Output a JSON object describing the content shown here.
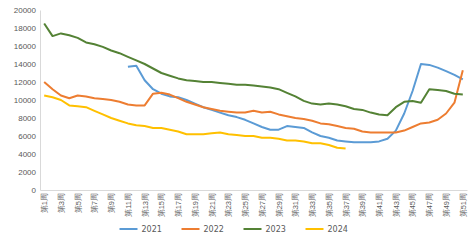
{
  "chart_data": {
    "type": "line",
    "categories": [
      "第1周",
      null,
      "第3周",
      null,
      "第5周",
      null,
      "第7周",
      null,
      "第9周",
      null,
      "第11周",
      null,
      "第13周",
      null,
      "第15周",
      null,
      "第17周",
      null,
      "第19周",
      null,
      "第21周",
      null,
      "第23周",
      null,
      "第25周",
      null,
      "第27周",
      null,
      "第29周",
      null,
      "第31周",
      null,
      "第33周",
      null,
      "第35周",
      null,
      "第37周",
      null,
      "第39周",
      null,
      "第41周",
      null,
      "第43周",
      null,
      "第45周",
      null,
      "第47周",
      null,
      "第49周",
      null,
      "第51周"
    ],
    "series": [
      {
        "name": "2021",
        "color": "#5b9bd5",
        "values": [
          null,
          null,
          null,
          null,
          null,
          null,
          null,
          null,
          null,
          null,
          13700,
          13800,
          12200,
          11200,
          10700,
          10400,
          10300,
          10000,
          9600,
          9200,
          8900,
          8600,
          8300,
          8100,
          7800,
          7400,
          7000,
          6700,
          6700,
          7100,
          7000,
          6900,
          6400,
          6000,
          5800,
          5500,
          5400,
          5300,
          5300,
          5300,
          5400,
          5700,
          6600,
          8500,
          11000,
          14000,
          13900,
          13600,
          13200,
          12800,
          12300
        ]
      },
      {
        "name": "2022",
        "color": "#ed7d31",
        "values": [
          12000,
          11200,
          10500,
          10200,
          10500,
          10400,
          10200,
          10100,
          10000,
          9800,
          9500,
          9400,
          9400,
          10700,
          10800,
          10600,
          10200,
          9800,
          9500,
          9200,
          9000,
          8800,
          8700,
          8600,
          8600,
          8800,
          8600,
          8700,
          8400,
          8200,
          8000,
          7900,
          7700,
          7400,
          7300,
          7100,
          6900,
          6800,
          6500,
          6400,
          6400,
          6400,
          6400,
          6600,
          7000,
          7400,
          7500,
          7800,
          8500,
          9700,
          13300
        ]
      },
      {
        "name": "2023",
        "color": "#548235",
        "values": [
          18500,
          17100,
          17400,
          17200,
          16900,
          16400,
          16200,
          15900,
          15500,
          15200,
          14800,
          14400,
          14000,
          13500,
          13000,
          12700,
          12400,
          12200,
          12100,
          12000,
          12000,
          11900,
          11800,
          11700,
          11700,
          11600,
          11500,
          11400,
          11200,
          10800,
          10400,
          9900,
          9600,
          9500,
          9600,
          9500,
          9300,
          9000,
          8900,
          8600,
          8400,
          8300,
          9200,
          9800,
          9900,
          9700,
          11200,
          11100,
          11000,
          10700,
          10600
        ]
      },
      {
        "name": "2024",
        "color": "#ffc000",
        "values": [
          10500,
          10300,
          10000,
          9400,
          9300,
          9200,
          8800,
          8400,
          8000,
          7700,
          7400,
          7200,
          7100,
          6900,
          6900,
          6700,
          6500,
          6200,
          6200,
          6200,
          6300,
          6400,
          6200,
          6100,
          6000,
          6000,
          5800,
          5800,
          5700,
          5500,
          5500,
          5400,
          5200,
          5200,
          5000,
          4700,
          4600,
          null,
          null,
          null,
          null,
          null,
          null,
          null,
          null,
          null,
          null,
          null,
          null,
          null,
          null
        ]
      }
    ],
    "ylim": [
      0,
      20000
    ],
    "yticks": [
      0,
      2000,
      4000,
      6000,
      8000,
      10000,
      12000,
      14000,
      16000,
      18000,
      20000
    ],
    "grid": false,
    "legend": "bottom"
  }
}
